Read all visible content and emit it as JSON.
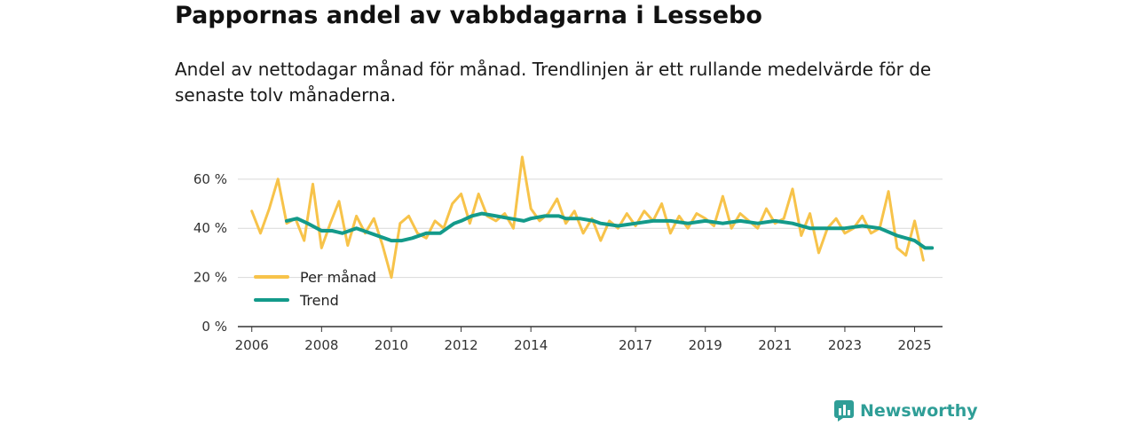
{
  "title": "Pappornas andel av vabbdagarna i Lessebo",
  "subtitle": "Andel av nettodagar månad för månad. Trendlinjen är ett rullande medelvärde för de senaste tolv månaderna.",
  "brand": {
    "name": "Newsworthy",
    "icon": "newsworthy-logo-icon"
  },
  "colors": {
    "per_month": "#f7c34a",
    "trend": "#139a8a",
    "grid": "#d9d9d9",
    "axis": "#333333"
  },
  "chart_data": {
    "type": "line",
    "title": "Pappornas andel av vabbdagarna i Lessebo",
    "xlabel": "",
    "ylabel": "",
    "xlim": [
      2005.6,
      2025.8
    ],
    "ylim": [
      0,
      65
    ],
    "y_ticks": [
      0,
      20,
      40,
      60
    ],
    "y_tick_labels": [
      "0 %",
      "20 %",
      "40 %",
      "60 %"
    ],
    "x_ticks": [
      2006,
      2008,
      2010,
      2012,
      2014,
      2017,
      2019,
      2021,
      2023,
      2025
    ],
    "x_tick_labels": [
      "2006",
      "2008",
      "2010",
      "2012",
      "2014",
      "2017",
      "2019",
      "2021",
      "2023",
      "2025"
    ],
    "grid": true,
    "legend": {
      "placement": "bottom-left",
      "entries": [
        "Per månad",
        "Trend"
      ]
    },
    "series": [
      {
        "name": "Per månad",
        "x": [
          2006.0,
          2006.25,
          2006.5,
          2006.75,
          2007.0,
          2007.25,
          2007.5,
          2007.75,
          2008.0,
          2008.25,
          2008.5,
          2008.75,
          2009.0,
          2009.25,
          2009.5,
          2009.75,
          2010.0,
          2010.25,
          2010.5,
          2010.75,
          2011.0,
          2011.25,
          2011.5,
          2011.75,
          2012.0,
          2012.25,
          2012.5,
          2012.75,
          2013.0,
          2013.25,
          2013.5,
          2013.75,
          2014.0,
          2014.25,
          2014.5,
          2014.75,
          2015.0,
          2015.25,
          2015.5,
          2015.75,
          2016.0,
          2016.25,
          2016.5,
          2016.75,
          2017.0,
          2017.25,
          2017.5,
          2017.75,
          2018.0,
          2018.25,
          2018.5,
          2018.75,
          2019.0,
          2019.25,
          2019.5,
          2019.75,
          2020.0,
          2020.25,
          2020.5,
          2020.75,
          2021.0,
          2021.25,
          2021.5,
          2021.75,
          2022.0,
          2022.25,
          2022.5,
          2022.75,
          2023.0,
          2023.25,
          2023.5,
          2023.75,
          2024.0,
          2024.25,
          2024.5,
          2024.75,
          2025.0,
          2025.25
        ],
        "values": [
          47,
          38,
          48,
          60,
          42,
          44,
          35,
          58,
          32,
          42,
          51,
          33,
          45,
          38,
          44,
          33,
          20,
          42,
          45,
          38,
          36,
          43,
          40,
          50,
          54,
          42,
          54,
          45,
          43,
          46,
          40,
          69,
          48,
          43,
          46,
          52,
          42,
          47,
          38,
          44,
          35,
          43,
          40,
          46,
          41,
          47,
          43,
          50,
          38,
          45,
          40,
          46,
          44,
          41,
          53,
          40,
          46,
          43,
          40,
          48,
          42,
          44,
          56,
          37,
          46,
          30,
          40,
          44,
          38,
          40,
          45,
          38,
          40,
          55,
          32,
          29,
          43,
          27
        ]
      },
      {
        "name": "Trend",
        "x": [
          2007.0,
          2007.3,
          2007.6,
          2008.0,
          2008.3,
          2008.6,
          2009.0,
          2009.4,
          2009.8,
          2010.0,
          2010.3,
          2010.6,
          2011.0,
          2011.4,
          2011.8,
          2012.0,
          2012.3,
          2012.6,
          2013.0,
          2013.4,
          2013.8,
          2014.0,
          2014.4,
          2014.8,
          2015.0,
          2015.4,
          2015.8,
          2016.0,
          2016.5,
          2017.0,
          2017.5,
          2018.0,
          2018.5,
          2019.0,
          2019.5,
          2020.0,
          2020.5,
          2021.0,
          2021.5,
          2022.0,
          2022.5,
          2023.0,
          2023.5,
          2024.0,
          2024.5,
          2025.0,
          2025.3,
          2025.5
        ],
        "values": [
          43,
          44,
          42,
          39,
          39,
          38,
          40,
          38,
          36,
          35,
          35,
          36,
          38,
          38,
          42,
          43,
          45,
          46,
          45,
          44,
          43,
          44,
          45,
          45,
          44,
          44,
          43,
          42,
          41,
          42,
          43,
          43,
          42,
          43,
          42,
          43,
          42,
          43,
          42,
          40,
          40,
          40,
          41,
          40,
          37,
          35,
          32,
          32
        ]
      }
    ]
  }
}
